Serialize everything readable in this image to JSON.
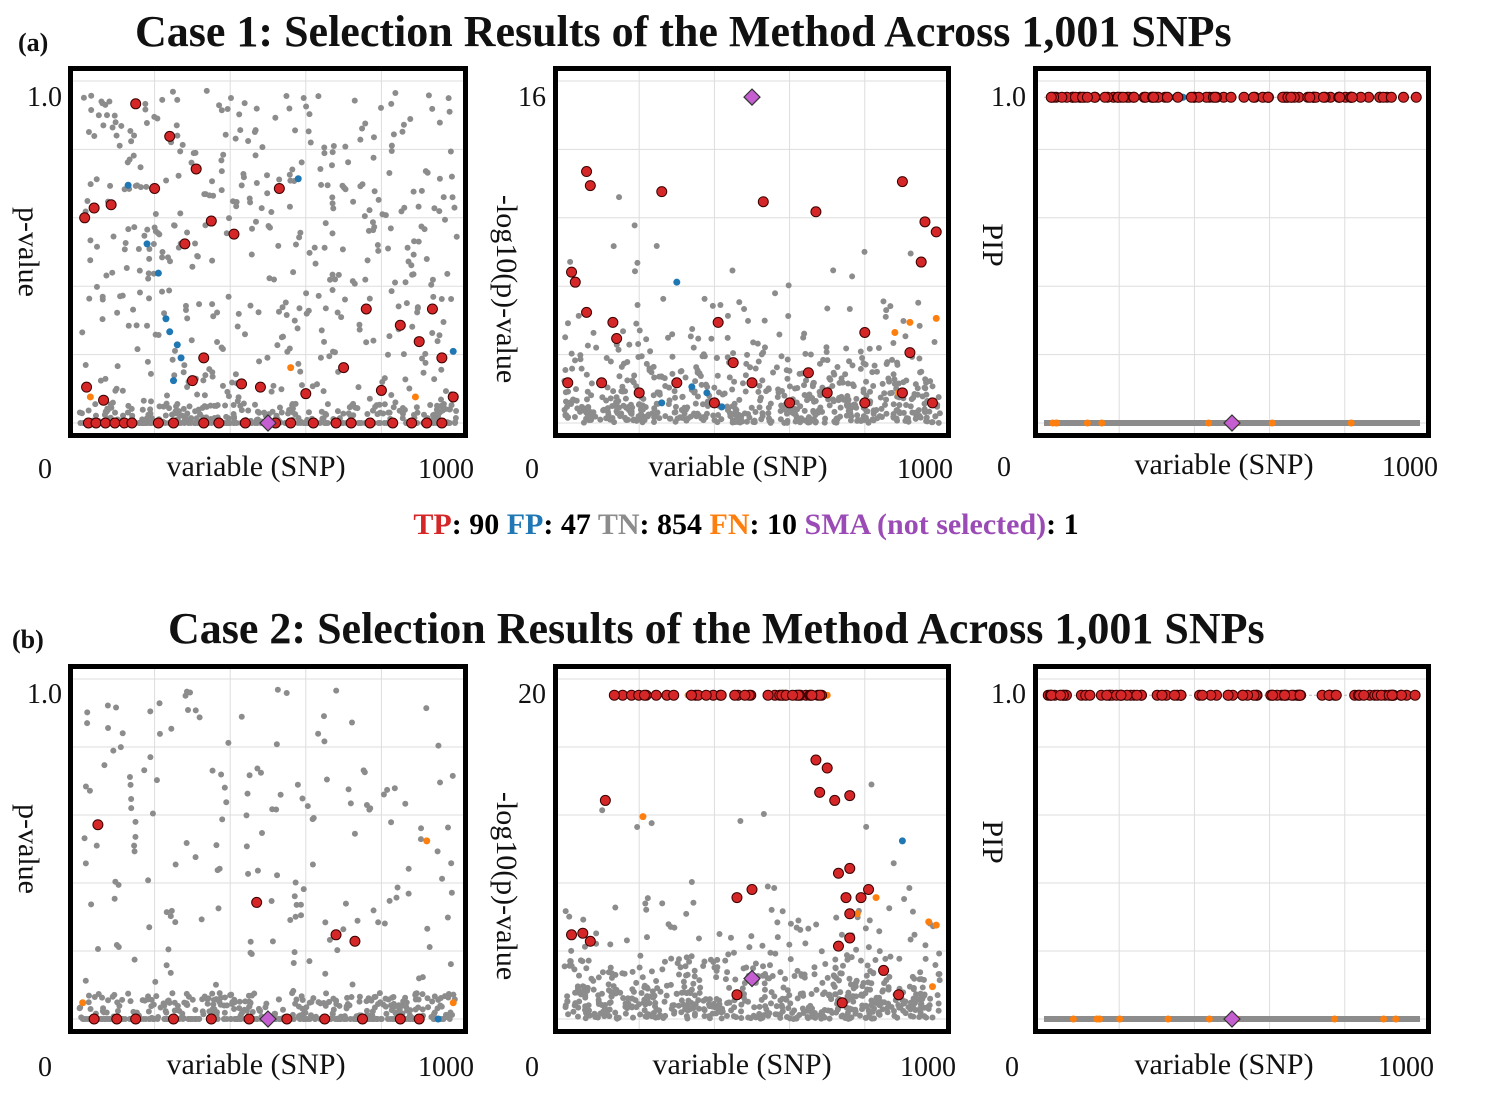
{
  "colors": {
    "TP": "#d62728",
    "FP": "#1f77b4",
    "TN": "#8c8c8c",
    "FN": "#ff7f0e",
    "SMA": "#c55fd1"
  },
  "legend": {
    "tp_label": "TP",
    "tp_value": "90",
    "fp_label": "FP",
    "fp_value": "47",
    "tn_label": "TN",
    "tn_value": "854",
    "fn_label": "FN",
    "fn_value": "10",
    "sma_label": "SMA (not selected)",
    "sma_value": "1",
    "separator": ":"
  },
  "rows": [
    {
      "tag": "(a)",
      "title": "Case 1: Selection Results of the Method Across 1,001 SNPs",
      "panels": [
        {
          "ylabel": "p-value",
          "ytick": "1.0",
          "xmin": "0",
          "xmax": "1000",
          "xlabel": "variable (SNP)"
        },
        {
          "ylabel": "-log10(p)-value",
          "ytick": "16",
          "xmin": "0",
          "xmax": "1000",
          "xlabel": "variable (SNP)"
        },
        {
          "ylabel": "PIP",
          "ytick": "1.0",
          "xmin": "0",
          "xmax": "1000",
          "xlabel": "variable (SNP)"
        }
      ]
    },
    {
      "tag": "(b)",
      "title": "Case 2: Selection Results of the Method Across 1,001 SNPs",
      "panels": [
        {
          "ylabel": "p-value",
          "ytick": "1.0",
          "xmin": "0",
          "xmax": "1000",
          "xlabel": "variable (SNP)"
        },
        {
          "ylabel": "-log10(p)-value",
          "ytick": "20",
          "xmin": "0",
          "xmax": "1000",
          "xlabel": "variable (SNP)"
        },
        {
          "ylabel": "PIP",
          "ytick": "1.0",
          "xmin": "0",
          "xmax": "1000",
          "xlabel": "variable (SNP)"
        }
      ]
    }
  ],
  "chart_data": [
    {
      "type": "scatter",
      "panel": "a-pvalue",
      "title": "Case 1: Selection Results of the Method Across 1,001 SNPs",
      "xlabel": "variable (SNP)",
      "ylabel": "p-value",
      "xlim": [
        0,
        1000
      ],
      "ylim": [
        0,
        1.05
      ],
      "series": [
        {
          "name": "TP",
          "points": [
            [
              15,
              0.63
            ],
            [
              40,
              0.66
            ],
            [
              85,
              0.67
            ],
            [
              150,
              0.98
            ],
            [
              240,
              0.88
            ],
            [
              310,
              0.78
            ],
            [
              200,
              0.72
            ],
            [
              280,
              0.55
            ],
            [
              350,
              0.62
            ],
            [
              410,
              0.58
            ],
            [
              530,
              0.72
            ],
            [
              760,
              0.35
            ],
            [
              850,
              0.3
            ],
            [
              900,
              0.25
            ],
            [
              935,
              0.35
            ],
            [
              960,
              0.2
            ],
            [
              20,
              0.11
            ],
            [
              65,
              0.07
            ],
            [
              300,
              0.13
            ],
            [
              330,
              0.2
            ],
            [
              430,
              0.12
            ],
            [
              480,
              0.11
            ],
            [
              600,
              0.09
            ],
            [
              700,
              0.17
            ],
            [
              800,
              0.1
            ],
            [
              990,
              0.08
            ],
            [
              25,
              0.0
            ],
            [
              45,
              0.0
            ],
            [
              70,
              0.0
            ],
            [
              95,
              0.0
            ],
            [
              120,
              0.0
            ],
            [
              140,
              0.0
            ],
            [
              210,
              0.0
            ],
            [
              250,
              0.0
            ],
            [
              330,
              0.0
            ],
            [
              370,
              0.0
            ],
            [
              440,
              0.0
            ],
            [
              520,
              0.0
            ],
            [
              560,
              0.0
            ],
            [
              620,
              0.0
            ],
            [
              680,
              0.0
            ],
            [
              720,
              0.0
            ],
            [
              770,
              0.0
            ],
            [
              830,
              0.0
            ],
            [
              880,
              0.0
            ],
            [
              920,
              0.0
            ],
            [
              960,
              0.0
            ]
          ]
        },
        {
          "name": "FP",
          "points": [
            [
              130,
              0.73
            ],
            [
              230,
              0.32
            ],
            [
              240,
              0.28
            ],
            [
              260,
              0.24
            ],
            [
              270,
              0.2
            ],
            [
              250,
              0.13
            ],
            [
              180,
              0.55
            ],
            [
              210,
              0.46
            ],
            [
              580,
              0.75
            ],
            [
              990,
              0.22
            ]
          ]
        },
        {
          "name": "FN",
          "points": [
            [
              30,
              0.08
            ],
            [
              560,
              0.17
            ],
            [
              890,
              0.08
            ]
          ]
        },
        {
          "name": "SMA",
          "points": [
            [
              500,
              0.0
            ]
          ]
        },
        {
          "name": "TN",
          "points": "scattered background (≈854)"
        }
      ]
    },
    {
      "type": "scatter",
      "panel": "a-neglog10p",
      "xlabel": "variable (SNP)",
      "ylabel": "-log10(p)-value",
      "xlim": [
        0,
        1000
      ],
      "ylim": [
        0,
        17
      ],
      "series": [
        {
          "name": "TP",
          "points": [
            [
              60,
              12.5
            ],
            [
              70,
              11.8
            ],
            [
              20,
              7.5
            ],
            [
              30,
              7.0
            ],
            [
              60,
              5.5
            ],
            [
              130,
              5.0
            ],
            [
              140,
              4.2
            ],
            [
              260,
              11.5
            ],
            [
              530,
              11.0
            ],
            [
              670,
              10.5
            ],
            [
              900,
              12.0
            ],
            [
              960,
              10.0
            ],
            [
              990,
              9.5
            ],
            [
              950,
              8.0
            ],
            [
              410,
              5.0
            ],
            [
              800,
              4.5
            ],
            [
              920,
              3.5
            ],
            [
              10,
              2.0
            ],
            [
              100,
              2.0
            ],
            [
              200,
              1.5
            ],
            [
              300,
              2.0
            ],
            [
              400,
              1.0
            ],
            [
              500,
              2.0
            ],
            [
              600,
              1.0
            ],
            [
              700,
              1.5
            ],
            [
              800,
              1.0
            ],
            [
              900,
              1.5
            ],
            [
              980,
              1.0
            ],
            [
              450,
              3.0
            ],
            [
              650,
              2.5
            ]
          ]
        },
        {
          "name": "FP",
          "points": [
            [
              300,
              7.0
            ],
            [
              340,
              1.8
            ],
            [
              380,
              1.5
            ],
            [
              400,
              1.0
            ],
            [
              420,
              0.8
            ],
            [
              260,
              1.0
            ]
          ]
        },
        {
          "name": "FN",
          "points": [
            [
              880,
              4.5
            ],
            [
              920,
              5.0
            ],
            [
              990,
              5.2
            ],
            [
              890,
              1.5
            ]
          ]
        },
        {
          "name": "SMA",
          "points": [
            [
              500,
              16.2
            ]
          ]
        },
        {
          "name": "TN",
          "points": "scattered background (≈854)"
        }
      ]
    },
    {
      "type": "scatter",
      "panel": "a-pip",
      "xlabel": "variable (SNP)",
      "ylabel": "PIP",
      "xlim": [
        0,
        1000
      ],
      "ylim": [
        0,
        1.05
      ],
      "series": [
        {
          "name": "TP",
          "points": "≈90 SNPs at PIP 1.0"
        },
        {
          "name": "FP",
          "points": "≈47 SNPs at PIP 1.0 (x≈220–370)"
        },
        {
          "name": "FN",
          "points": "≈10 SNPs at PIP 0.0"
        },
        {
          "name": "SMA",
          "points": [
            [
              500,
              0.0
            ]
          ]
        },
        {
          "name": "TN",
          "points": "≈854 SNPs at PIP 0.0"
        }
      ]
    },
    {
      "type": "scatter",
      "panel": "b-pvalue",
      "title": "Case 2: Selection Results of the Method Across 1,001 SNPs",
      "xlabel": "variable (SNP)",
      "ylabel": "p-value",
      "xlim": [
        0,
        1000
      ],
      "ylim": [
        0,
        1.05
      ],
      "series": [
        {
          "name": "TP",
          "points": [
            [
              50,
              0.6
            ],
            [
              470,
              0.36
            ],
            [
              680,
              0.26
            ],
            [
              730,
              0.24
            ],
            [
              40,
              0.0
            ],
            [
              100,
              0.0
            ],
            [
              150,
              0.0
            ],
            [
              250,
              0.0
            ],
            [
              350,
              0.0
            ],
            [
              450,
              0.0
            ],
            [
              550,
              0.0
            ],
            [
              650,
              0.0
            ],
            [
              750,
              0.0
            ],
            [
              850,
              0.0
            ],
            [
              900,
              0.0
            ]
          ]
        },
        {
          "name": "FP",
          "points": [
            [
              950,
              0.0
            ]
          ]
        },
        {
          "name": "FN",
          "points": [
            [
              920,
              0.55
            ],
            [
              10,
              0.05
            ],
            [
              990,
              0.05
            ]
          ]
        },
        {
          "name": "SMA",
          "points": [
            [
              500,
              0.0
            ]
          ]
        },
        {
          "name": "TN",
          "points": "scattered background"
        }
      ]
    },
    {
      "type": "scatter",
      "panel": "b-neglog10p",
      "xlabel": "variable (SNP)",
      "ylabel": "-log10(p)-value",
      "xlim": [
        0,
        1000
      ],
      "ylim": [
        0,
        21
      ],
      "series": [
        {
          "name": "TP",
          "points": "≈40 SNPs capped at 20; [[110,13.5],[670,16],[700,15.5],[680,14],[720,13.5],[760,13.8],[760,9.3],[730,9.0],[810,8.0],[790,7.5],[750,7.5],[760,6.5],[760,5.0],[730,4.5],[850,3.0],[890,1.5],[460,7.5],[500,8.0],[460,1.5],[740,1.0],[20,5.2],[50,5.3],[70,4.8]]"
        },
        {
          "name": "FP",
          "points": [
            [
              900,
              11.0
            ]
          ]
        },
        {
          "name": "FN",
          "points": "≈10 SNPs, several capped at 20 plus [[210,12.5],[830,7.5],[780,6.5],[970,6.0],[990,5.8],[980,2.0]]"
        },
        {
          "name": "SMA",
          "points": [
            [
              500,
              2.5
            ]
          ]
        },
        {
          "name": "TN",
          "points": "scattered background"
        }
      ]
    },
    {
      "type": "scatter",
      "panel": "b-pip",
      "xlabel": "variable (SNP)",
      "ylabel": "PIP",
      "xlim": [
        0,
        1000
      ],
      "ylim": [
        0,
        1.05
      ],
      "series": [
        {
          "name": "TP",
          "points": "≈90 SNPs at PIP 1.0"
        },
        {
          "name": "FP",
          "points": [
            [
              900,
              1.0
            ]
          ]
        },
        {
          "name": "FN",
          "points": "≈10 SNPs at PIP 0.0"
        },
        {
          "name": "SMA",
          "points": [
            [
              500,
              0.0
            ]
          ]
        },
        {
          "name": "TN",
          "points": "SNPs at PIP 0.0"
        }
      ]
    }
  ]
}
